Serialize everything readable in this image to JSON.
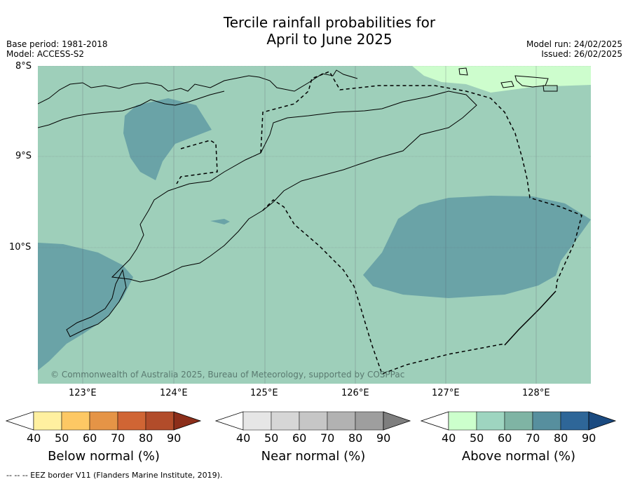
{
  "title_line1": "Tercile rainfall probabilities for",
  "title_line2": "April to June 2025",
  "meta": {
    "base_period": "Base period: 1981-2018",
    "model": "Model: ACCESS-S2",
    "model_run": "Model run: 24/02/2025",
    "issued": "Issued: 26/02/2025"
  },
  "map": {
    "lat_labels": [
      "8°S",
      "9°S",
      "10°S"
    ],
    "lon_labels": [
      "123°E",
      "124°E",
      "125°E",
      "126°E",
      "127°E",
      "128°E"
    ],
    "copyright": "© Commonwealth of Australia 2025, Bureau of Meteorology, supported by COSPPac",
    "colors": {
      "above_50": "#9ecfba",
      "above_70": "#6aa3a7",
      "above_40": "#cdfdcd"
    }
  },
  "legends": [
    {
      "name": "Below normal (%)",
      "ticks": [
        "40",
        "50",
        "60",
        "70",
        "80",
        "90"
      ],
      "colors": [
        "#ffffff",
        "#fff0a0",
        "#fdc864",
        "#e59446",
        "#d06534",
        "#b24c2a",
        "#8c2e1a"
      ]
    },
    {
      "name": "Near normal (%)",
      "ticks": [
        "40",
        "50",
        "60",
        "70",
        "80",
        "90"
      ],
      "colors": [
        "#ffffff",
        "#e6e6e6",
        "#d6d6d6",
        "#c6c6c6",
        "#b2b2b2",
        "#9e9e9e",
        "#7e7e7e"
      ]
    },
    {
      "name": "Above normal (%)",
      "ticks": [
        "40",
        "50",
        "60",
        "70",
        "80",
        "90"
      ],
      "colors": [
        "#ffffff",
        "#ccffcc",
        "#9ed5c0",
        "#7fb4a4",
        "#578f9e",
        "#2e6698",
        "#1a4a80"
      ]
    }
  ],
  "footnote": "--  --  -- EEZ border V11 (Flanders Marine Institute, 2019)."
}
